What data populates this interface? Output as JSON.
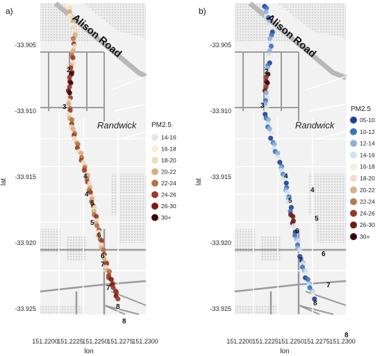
{
  "panels": [
    {
      "label": "a)",
      "road_label": "Alison Road",
      "suburb_label": "Randwick",
      "ylabel": "lat",
      "xlabel": "lon",
      "y_ticks": [
        "-33.905",
        "-33.910",
        "-33.915",
        "-33.920",
        "-33.925"
      ],
      "x_ticks": [
        "151.2200",
        "151.2225",
        "151.2250",
        "151.2275",
        "151.2300"
      ],
      "legend": {
        "title": "PM2.5",
        "entries": [
          {
            "label": "14-16",
            "color": "#dde9f2"
          },
          {
            "label": "16-18",
            "color": "#f6efd0"
          },
          {
            "label": "18-20",
            "color": "#f0dcc0"
          },
          {
            "label": "20-22",
            "color": "#d9ad7c"
          },
          {
            "label": "22-24",
            "color": "#b47443"
          },
          {
            "label": "24-26",
            "color": "#9b3b26"
          },
          {
            "label": "26-30",
            "color": "#7a1a19"
          },
          {
            "label": "30+",
            "color": "#3d0808"
          }
        ]
      },
      "markers_on_route": [
        "2",
        "3",
        "4",
        "5",
        "6",
        "7",
        "8"
      ],
      "markers_side": [
        "4",
        "5",
        "6",
        "7",
        "8"
      ]
    },
    {
      "label": "b)",
      "road_label": "Alison Road",
      "suburb_label": "Randwick",
      "ylabel": "lat",
      "xlabel": "lon",
      "y_ticks": [
        "-33.905",
        "-33.910",
        "-33.915",
        "-33.920",
        "-33.925"
      ],
      "x_ticks": [
        "151.2200",
        "151.2225",
        "151.2250",
        "151.2275",
        "151.2300"
      ],
      "legend": {
        "title": "PM2.5",
        "entries": [
          {
            "label": "05-10",
            "color": "#1f3f9a"
          },
          {
            "label": "10-12",
            "color": "#3a72c4"
          },
          {
            "label": "12-14",
            "color": "#8fb0d9"
          },
          {
            "label": "14-16",
            "color": "#d2e2f0"
          },
          {
            "label": "16-18",
            "color": "#f5efd6"
          },
          {
            "label": "18-20",
            "color": "#f2dccb"
          },
          {
            "label": "20-22",
            "color": "#d9b08a"
          },
          {
            "label": "22-24",
            "color": "#b27a4f"
          },
          {
            "label": "24-26",
            "color": "#8f3b22"
          },
          {
            "label": "26-30",
            "color": "#6c1b17"
          },
          {
            "label": "30+",
            "color": "#330606"
          }
        ]
      },
      "markers_on_route": [
        "2",
        "3",
        "4",
        "5",
        "6",
        "7",
        "8"
      ],
      "markers_side": [
        "4",
        "5",
        "6",
        "7",
        "8"
      ]
    }
  ]
}
